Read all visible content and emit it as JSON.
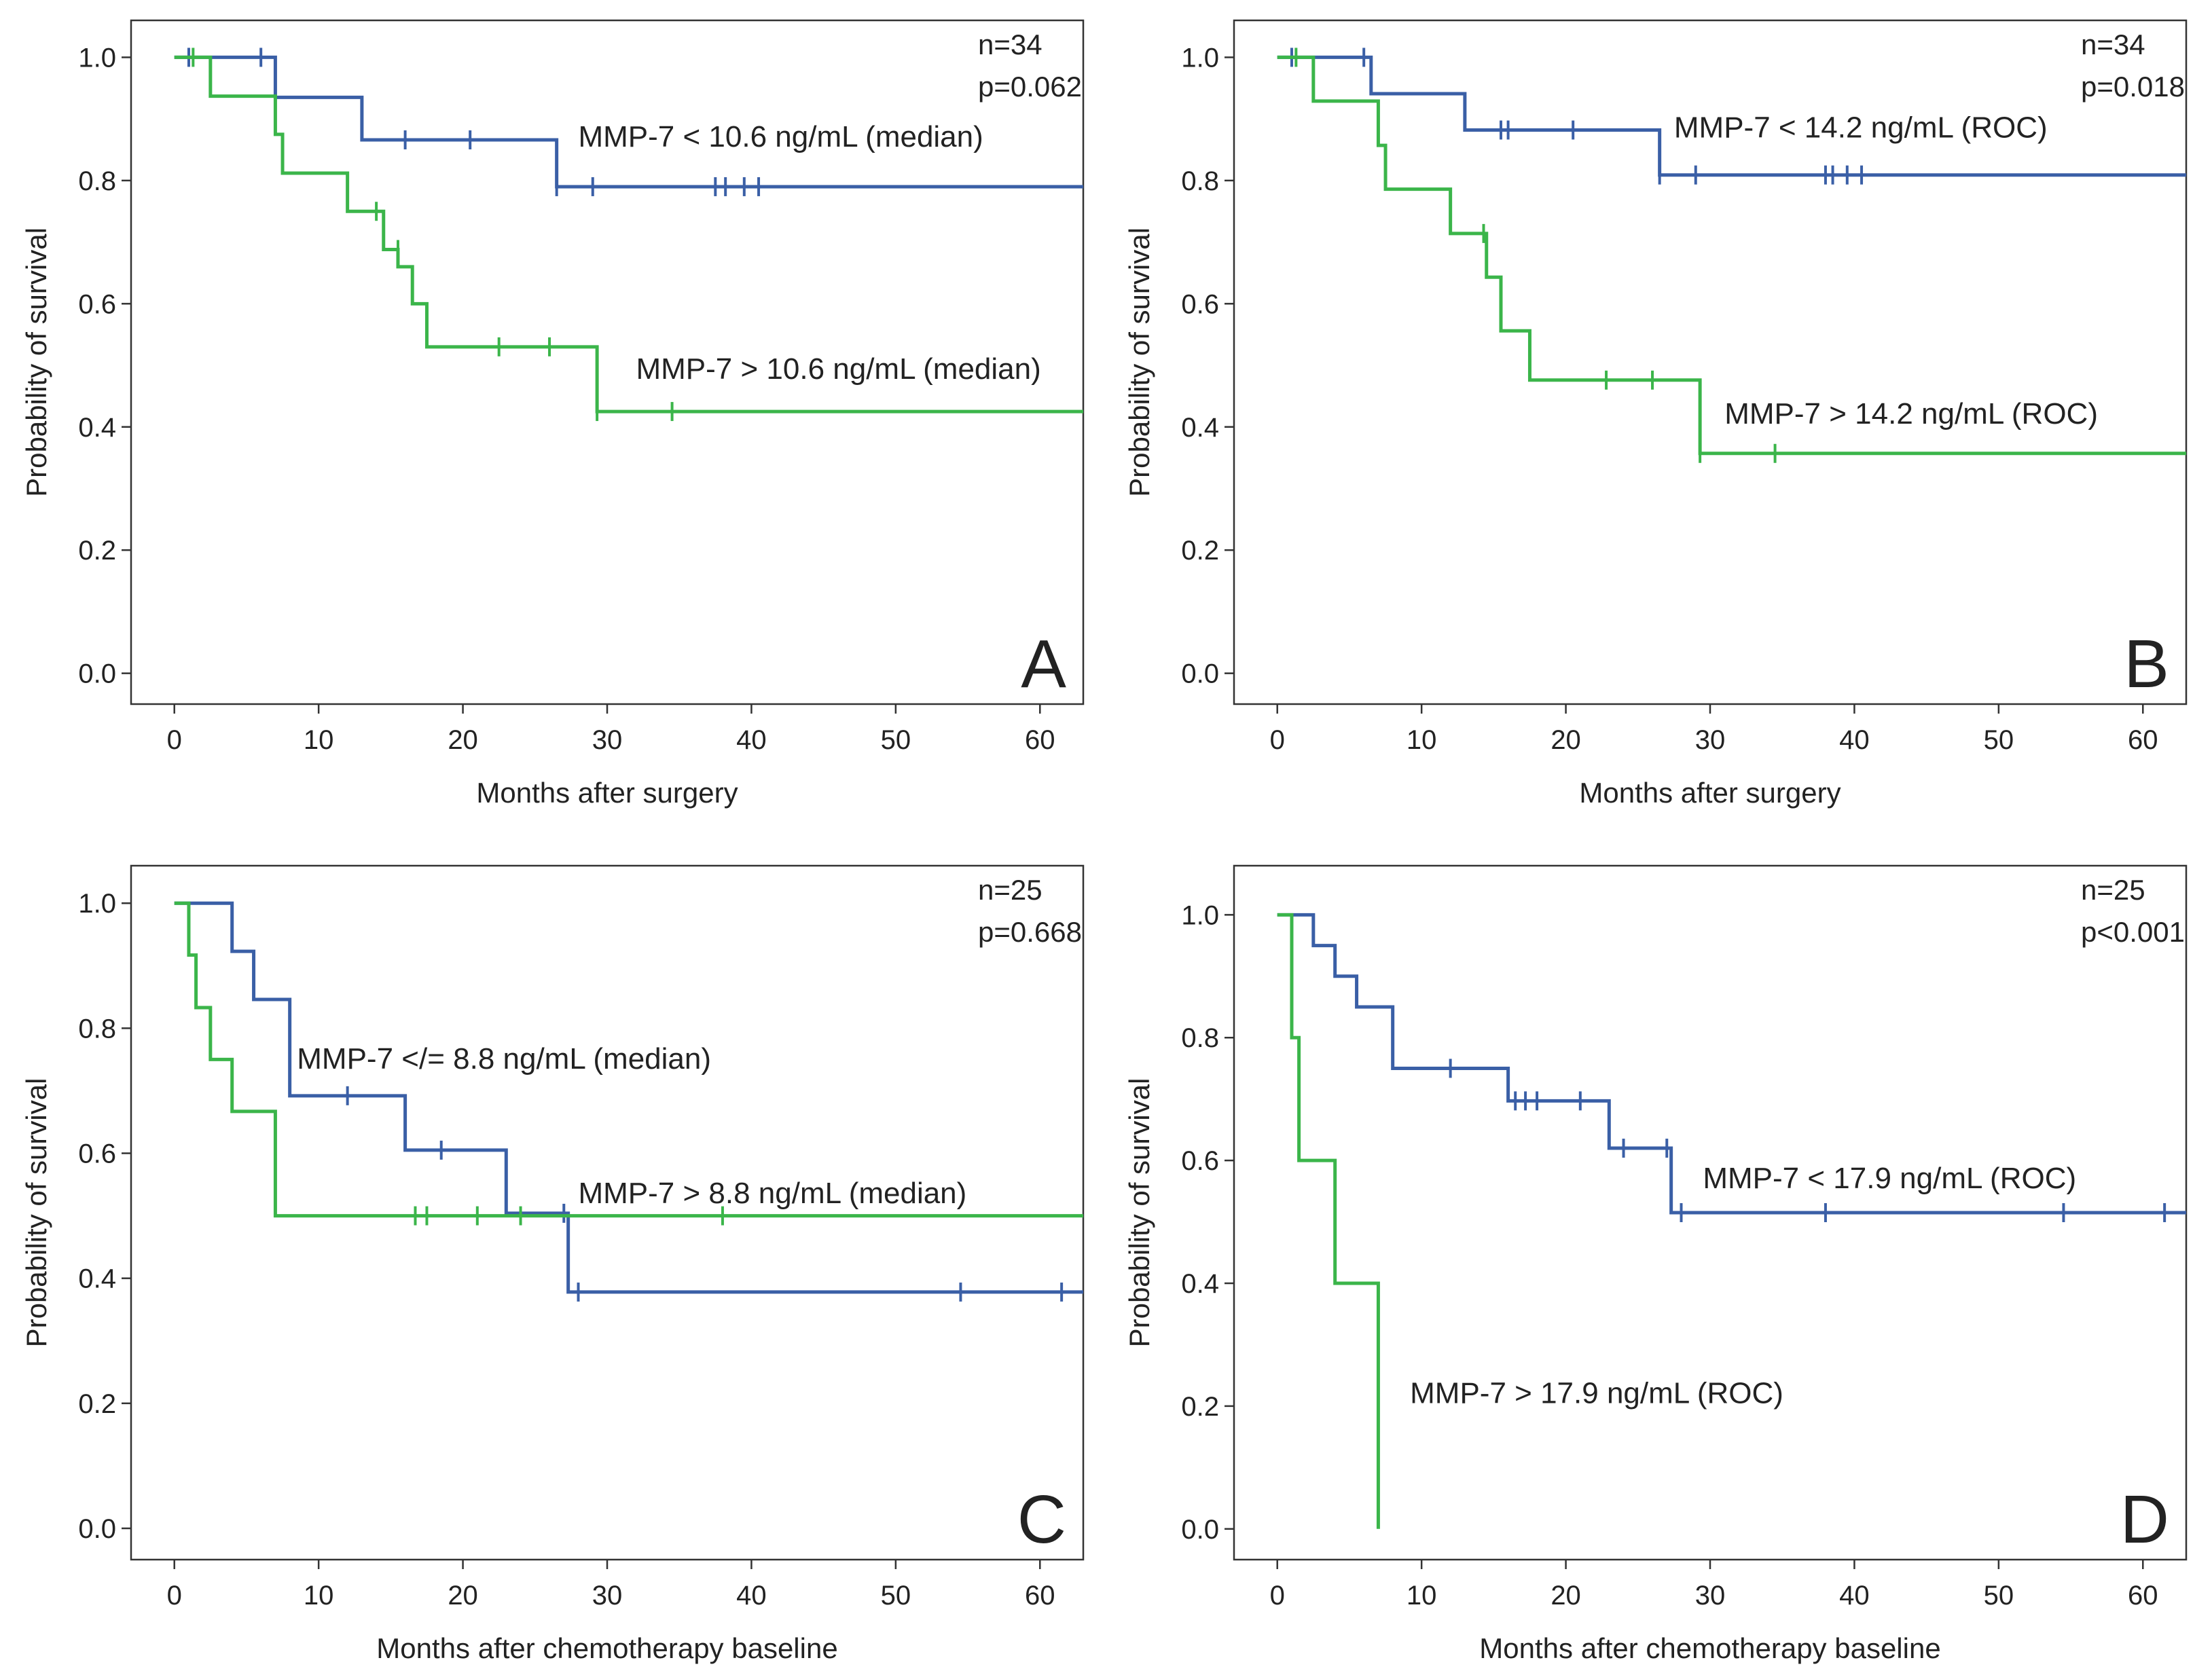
{
  "figure": {
    "y_axis_label": "Probability of survival",
    "colors": {
      "blue": "#3a5fa6",
      "green": "#3bb54a",
      "axis": "#333333"
    }
  },
  "chart_data": [
    {
      "type": "line",
      "step": true,
      "panel_letter": "A",
      "xlabel": "Months after surgery",
      "ylabel": "Probability of survival",
      "xlim": [
        -3,
        63
      ],
      "ylim": [
        -0.05,
        1.06
      ],
      "xticks": [
        0,
        10,
        20,
        30,
        40,
        50,
        60
      ],
      "yticks": [
        0.0,
        0.2,
        0.4,
        0.6,
        0.8,
        1.0
      ],
      "stats": [
        "n=34",
        "p=0.062"
      ],
      "series": [
        {
          "name": "MMP-7 < 10.6 ng/mL (median)",
          "color": "blue",
          "label_at": [
            28,
            0.855
          ],
          "x": [
            0,
            7,
            13,
            26.5,
            63
          ],
          "y": [
            1.0,
            0.935,
            0.866,
            0.79,
            0.79
          ],
          "censored": [
            [
              1,
              1.0
            ],
            [
              6,
              1.0
            ],
            [
              16,
              0.866
            ],
            [
              20.5,
              0.866
            ],
            [
              26.5,
              0.79
            ],
            [
              29,
              0.79
            ],
            [
              37.5,
              0.79
            ],
            [
              38.2,
              0.79
            ],
            [
              39.5,
              0.79
            ],
            [
              40.5,
              0.79
            ]
          ]
        },
        {
          "name": "MMP-7 > 10.6 ng/mL (median)",
          "color": "green",
          "label_at": [
            32,
            0.478
          ],
          "x": [
            0,
            2.5,
            7,
            7.5,
            12,
            14.5,
            15.5,
            16.5,
            17.5,
            29.3,
            63
          ],
          "y": [
            1.0,
            0.937,
            0.875,
            0.812,
            0.75,
            0.688,
            0.66,
            0.6,
            0.53,
            0.425,
            0.425
          ],
          "censored": [
            [
              1.3,
              1.0
            ],
            [
              14,
              0.75
            ],
            [
              15.5,
              0.688
            ],
            [
              22.5,
              0.53
            ],
            [
              26,
              0.53
            ],
            [
              29.3,
              0.425
            ],
            [
              34.5,
              0.425
            ]
          ]
        }
      ]
    },
    {
      "type": "line",
      "step": true,
      "panel_letter": "B",
      "xlabel": "Months after surgery",
      "ylabel": "Probability of survival",
      "xlim": [
        -3,
        63
      ],
      "ylim": [
        -0.05,
        1.06
      ],
      "xticks": [
        0,
        10,
        20,
        30,
        40,
        50,
        60
      ],
      "yticks": [
        0.0,
        0.2,
        0.4,
        0.6,
        0.8,
        1.0
      ],
      "stats": [
        "n=34",
        "p=0.018"
      ],
      "series": [
        {
          "name": "MMP-7 < 14.2 ng/mL (ROC)",
          "color": "blue",
          "label_at": [
            27.5,
            0.87
          ],
          "x": [
            0,
            6.5,
            13,
            26.5,
            63
          ],
          "y": [
            1.0,
            0.941,
            0.882,
            0.809,
            0.809
          ],
          "censored": [
            [
              1,
              1.0
            ],
            [
              6,
              1.0
            ],
            [
              15.5,
              0.882
            ],
            [
              16,
              0.882
            ],
            [
              20.5,
              0.882
            ],
            [
              26.5,
              0.809
            ],
            [
              29,
              0.809
            ],
            [
              38,
              0.809
            ],
            [
              38.5,
              0.809
            ],
            [
              39.5,
              0.809
            ],
            [
              40.5,
              0.809
            ]
          ]
        },
        {
          "name": "MMP-7 > 14.2 ng/mL (ROC)",
          "color": "green",
          "label_at": [
            31,
            0.405
          ],
          "x": [
            0,
            2.5,
            7,
            7.5,
            12,
            14.5,
            15.5,
            17.5,
            29.3,
            63
          ],
          "y": [
            1.0,
            0.929,
            0.857,
            0.786,
            0.714,
            0.643,
            0.556,
            0.476,
            0.357,
            0.357
          ],
          "censored": [
            [
              1.3,
              1.0
            ],
            [
              14.3,
              0.714
            ],
            [
              22.8,
              0.476
            ],
            [
              26,
              0.476
            ],
            [
              29.3,
              0.357
            ],
            [
              34.5,
              0.357
            ]
          ]
        }
      ]
    },
    {
      "type": "line",
      "step": true,
      "panel_letter": "C",
      "xlabel": "Months after chemotherapy baseline",
      "ylabel": "Probability of survival",
      "xlim": [
        -3,
        63
      ],
      "ylim": [
        -0.05,
        1.06
      ],
      "xticks": [
        0,
        10,
        20,
        30,
        40,
        50,
        60
      ],
      "yticks": [
        0.0,
        0.2,
        0.4,
        0.6,
        0.8,
        1.0
      ],
      "stats": [
        "n=25",
        "p=0.668"
      ],
      "series": [
        {
          "name": "MMP-7 </= 8.8 ng/mL (median)",
          "color": "blue",
          "label_at": [
            8.5,
            0.735
          ],
          "x": [
            0,
            4,
            5.5,
            8,
            16,
            23,
            27.3,
            63
          ],
          "y": [
            1.0,
            0.923,
            0.846,
            0.692,
            0.605,
            0.504,
            0.378,
            0.378
          ],
          "censored": [
            [
              12,
              0.692
            ],
            [
              18.5,
              0.605
            ],
            [
              27,
              0.504
            ],
            [
              28,
              0.378
            ],
            [
              54.5,
              0.378
            ],
            [
              61.5,
              0.378
            ]
          ]
        },
        {
          "name": "MMP-7 > 8.8 ng/mL (median)",
          "color": "green",
          "label_at": [
            28,
            0.52
          ],
          "x": [
            0,
            1,
            1.5,
            2.5,
            4,
            7,
            63
          ],
          "y": [
            1.0,
            0.917,
            0.833,
            0.75,
            0.667,
            0.5,
            0.5
          ],
          "censored": [
            [
              16.7,
              0.5
            ],
            [
              17.5,
              0.5
            ],
            [
              21,
              0.5
            ],
            [
              24,
              0.5
            ],
            [
              38,
              0.5
            ]
          ]
        }
      ]
    },
    {
      "type": "line",
      "step": true,
      "panel_letter": "D",
      "xlabel": "Months after chemotherapy baseline",
      "ylabel": "Probability of survival",
      "xlim": [
        -3,
        63
      ],
      "ylim": [
        -0.05,
        1.08
      ],
      "xticks": [
        0,
        10,
        20,
        30,
        40,
        50,
        60
      ],
      "yticks": [
        0.0,
        0.2,
        0.4,
        0.6,
        0.8,
        1.0
      ],
      "stats": [
        "n=25",
        "p<0.001"
      ],
      "series": [
        {
          "name": "MMP-7 < 17.9 ng/mL (ROC)",
          "color": "blue",
          "label_at": [
            29.5,
            0.555
          ],
          "x": [
            0,
            2.5,
            4,
            5.5,
            8,
            16,
            23,
            27.3,
            63
          ],
          "y": [
            1.0,
            0.95,
            0.9,
            0.85,
            0.75,
            0.697,
            0.62,
            0.515,
            0.515
          ],
          "censored": [
            [
              12,
              0.75
            ],
            [
              16.5,
              0.697
            ],
            [
              17.2,
              0.697
            ],
            [
              18,
              0.697
            ],
            [
              21,
              0.697
            ],
            [
              24,
              0.62
            ],
            [
              27,
              0.62
            ],
            [
              28,
              0.515
            ],
            [
              38,
              0.515
            ],
            [
              54.5,
              0.515
            ],
            [
              61.5,
              0.515
            ]
          ]
        },
        {
          "name": "MMP-7 > 17.9 ng/mL (ROC)",
          "color": "green",
          "label_at": [
            9.2,
            0.205
          ],
          "x": [
            0,
            1,
            1.5,
            4,
            7,
            7
          ],
          "y": [
            1.0,
            0.8,
            0.6,
            0.4,
            0.2,
            0.0
          ],
          "censored": []
        }
      ]
    }
  ]
}
